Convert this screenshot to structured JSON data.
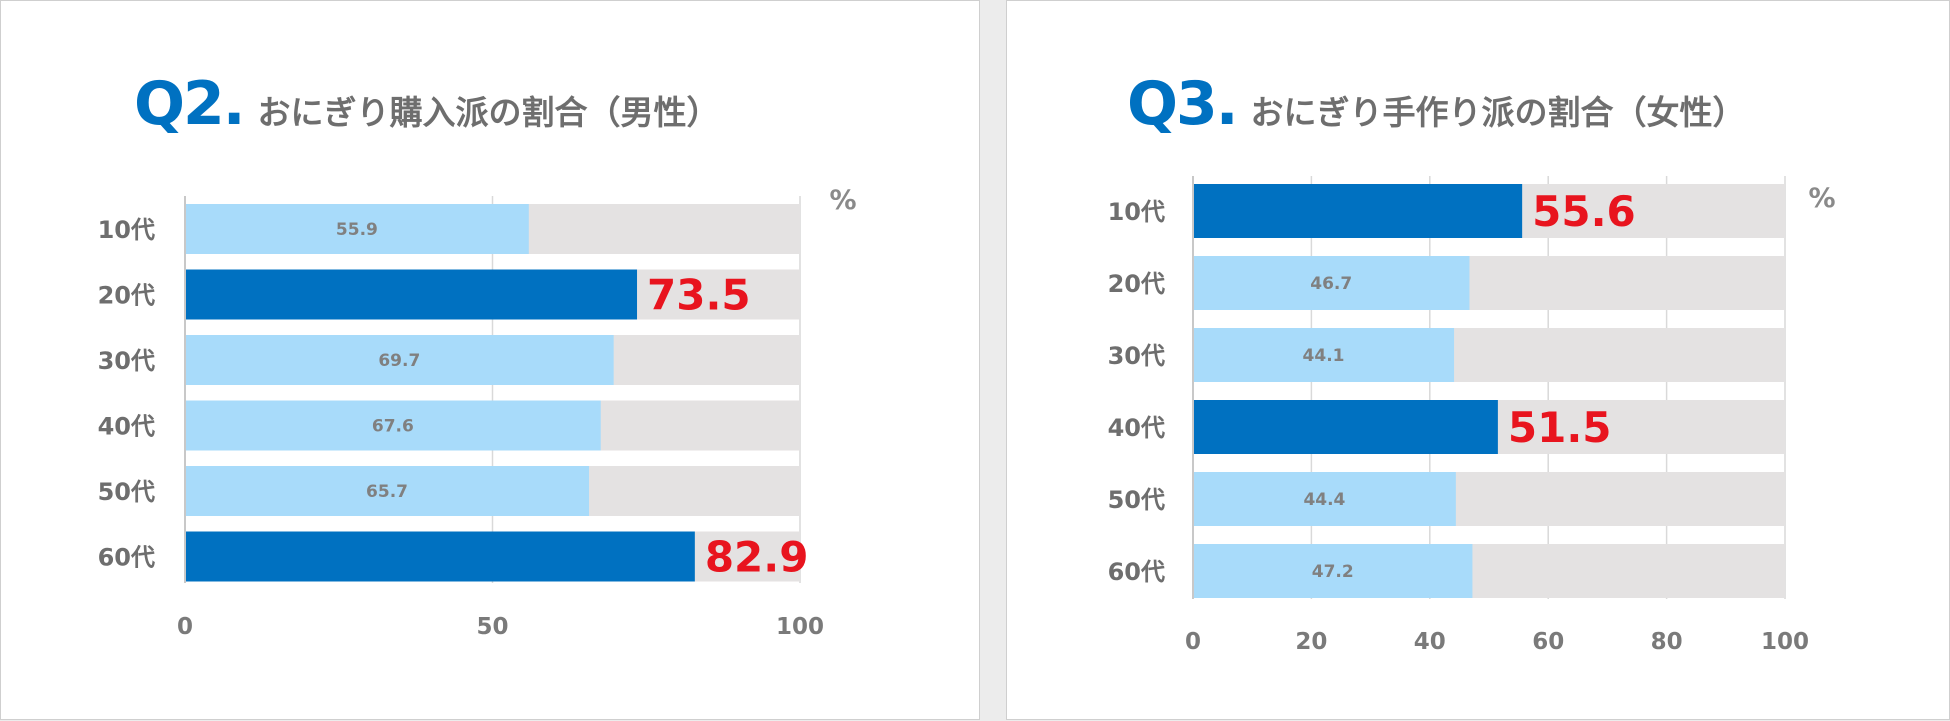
{
  "colors": {
    "accent": "#0071c1",
    "highlight_bar": "#0071c1",
    "normal_bar": "#a8dbfa",
    "track": "#e4e2e2",
    "highlight_value": "#e8141e",
    "grid": "#d9d9d9"
  },
  "chart_data": [
    {
      "type": "bar",
      "orientation": "horizontal",
      "title_number": "Q2.",
      "title_text": "おにぎり購入派の割合（男性）",
      "unit_label": "%",
      "categories": [
        "10代",
        "20代",
        "30代",
        "40代",
        "50代",
        "60代"
      ],
      "values": [
        55.9,
        73.5,
        69.7,
        67.6,
        65.7,
        82.9
      ],
      "value_labels": [
        "55.9",
        "73.5",
        "69.7",
        "67.6",
        "65.7",
        "82.9"
      ],
      "highlighted": [
        false,
        true,
        false,
        false,
        false,
        true
      ],
      "xlim": [
        0,
        100
      ],
      "xticks": [
        0,
        50,
        100
      ],
      "xtick_labels": [
        "0",
        "50",
        "100"
      ],
      "background_track": 100,
      "grid": true
    },
    {
      "type": "bar",
      "orientation": "horizontal",
      "title_number": "Q3.",
      "title_text": "おにぎり手作り派の割合（女性）",
      "unit_label": "%",
      "categories": [
        "10代",
        "20代",
        "30代",
        "40代",
        "50代",
        "60代"
      ],
      "values": [
        55.6,
        46.7,
        44.1,
        51.5,
        44.4,
        47.2
      ],
      "value_labels": [
        "55.6",
        "46.7",
        "44.1",
        "51.5",
        "44.4",
        "47.2"
      ],
      "highlighted": [
        true,
        false,
        false,
        true,
        false,
        false
      ],
      "xlim": [
        0,
        100
      ],
      "xticks": [
        0,
        20,
        40,
        60,
        80,
        100
      ],
      "xtick_labels": [
        "0",
        "20",
        "40",
        "60",
        "80",
        "100"
      ],
      "background_track": 100,
      "grid": true
    }
  ]
}
